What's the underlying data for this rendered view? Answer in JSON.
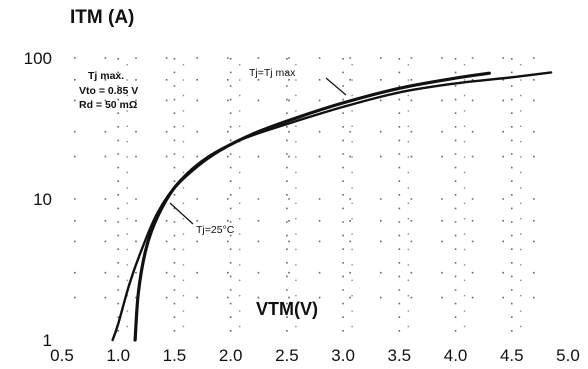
{
  "chart_data": {
    "type": "line",
    "ylabel": "ITM (A)",
    "xlabel": "VTM(V)",
    "y_scale": "log",
    "ylim": [
      1,
      100
    ],
    "xlim": [
      0.5,
      5.0
    ],
    "x_ticks": [
      "0.5",
      "1.0",
      "1.5",
      "2.0",
      "2.5",
      "3.0",
      "3.5",
      "4.0",
      "4.5",
      "5.0"
    ],
    "y_ticks": [
      "1",
      "10",
      "100"
    ],
    "grid": "dotted",
    "notes": [
      "Tj max.",
      "Vto = 0.85 V",
      "Rd = 50 mΩ"
    ],
    "series": [
      {
        "name": "Tj=Tj max",
        "x": [
          0.95,
          1.0,
          1.1,
          1.2,
          1.35,
          1.55,
          1.8,
          2.1,
          2.5,
          3.0,
          3.5,
          4.0,
          4.5,
          4.85
        ],
        "y": [
          1.0,
          1.3,
          2.5,
          4.2,
          8.0,
          13.5,
          20.0,
          26.5,
          34.0,
          45.0,
          57.0,
          66.0,
          73.0,
          79.0
        ]
      },
      {
        "name": "Tj=25°C",
        "x": [
          1.15,
          1.18,
          1.25,
          1.35,
          1.5,
          1.7,
          1.9,
          2.2,
          2.6,
          3.0,
          3.5,
          4.0,
          4.3
        ],
        "y": [
          1.0,
          2.2,
          4.5,
          7.5,
          12.0,
          17.0,
          22.0,
          29.0,
          38.0,
          48.0,
          61.0,
          72.0,
          78.0
        ]
      }
    ],
    "annotations": [
      {
        "text": "Tj=Tj max",
        "series": 0
      },
      {
        "text": "Tj=25°C",
        "series": 1
      }
    ]
  }
}
